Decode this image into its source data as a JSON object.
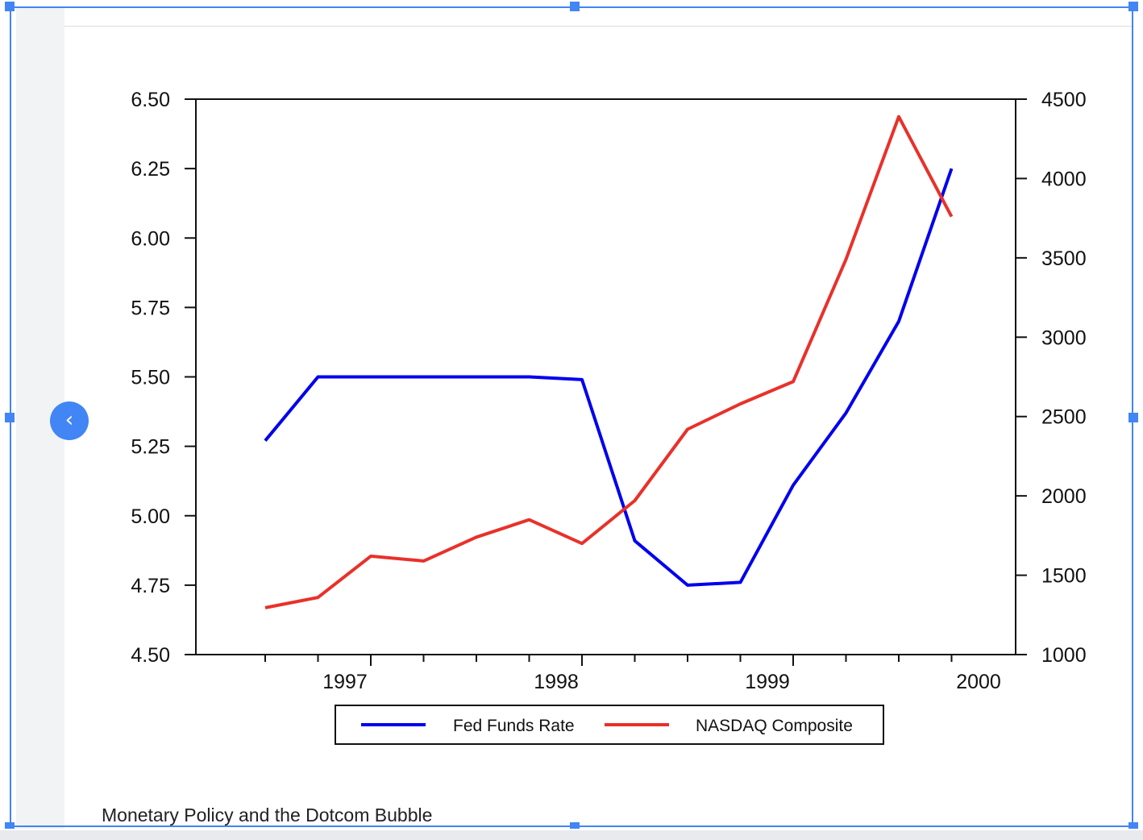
{
  "caption": "Monetary Policy and the Dotcom Bubble",
  "nav": {
    "prev_glyph": "‹"
  },
  "colors": {
    "selection": "#4285f4",
    "fed_line": "#0000ee",
    "nasdaq_line": "#e8312a"
  },
  "chart_data": {
    "type": "line",
    "title": "",
    "xlabel": "",
    "x_ticks": [
      "1997",
      "1998",
      "1999",
      "2000"
    ],
    "x_range": [
      1996.5,
      2000.0
    ],
    "left_axis": {
      "ylim": [
        4.5,
        6.5
      ],
      "ticks": [
        "6.50",
        "6.25",
        "6.00",
        "5.75",
        "5.50",
        "5.25",
        "5.00",
        "4.75",
        "4.50"
      ]
    },
    "right_axis": {
      "ylim": [
        1000,
        4500
      ],
      "ticks": [
        "4500",
        "4000",
        "3500",
        "3000",
        "2500",
        "2000",
        "1500",
        "1000"
      ]
    },
    "grid": false,
    "legend": {
      "placement": "bottom",
      "entries": [
        "Fed Funds Rate",
        "NASDAQ Composite"
      ]
    },
    "series": [
      {
        "name": "Fed Funds Rate",
        "axis": "left",
        "x": [
          1996.5,
          1996.75,
          1997.0,
          1997.25,
          1997.5,
          1997.75,
          1998.0,
          1998.25,
          1998.5,
          1998.75,
          1999.0,
          1999.25,
          1999.5,
          1999.75
        ],
        "y": [
          5.27,
          5.5,
          5.5,
          5.5,
          5.5,
          5.5,
          5.49,
          4.91,
          4.75,
          4.76,
          5.11,
          5.37,
          5.7,
          6.25
        ]
      },
      {
        "name": "NASDAQ Composite",
        "axis": "right",
        "x": [
          1996.5,
          1996.75,
          1997.0,
          1997.25,
          1997.5,
          1997.75,
          1998.0,
          1998.25,
          1998.5,
          1998.75,
          1999.0,
          1999.25,
          1999.5,
          1999.75
        ],
        "y": [
          1295,
          1360,
          1620,
          1590,
          1740,
          1850,
          1700,
          1970,
          2420,
          2580,
          2720,
          3490,
          4390,
          3760
        ]
      }
    ]
  }
}
